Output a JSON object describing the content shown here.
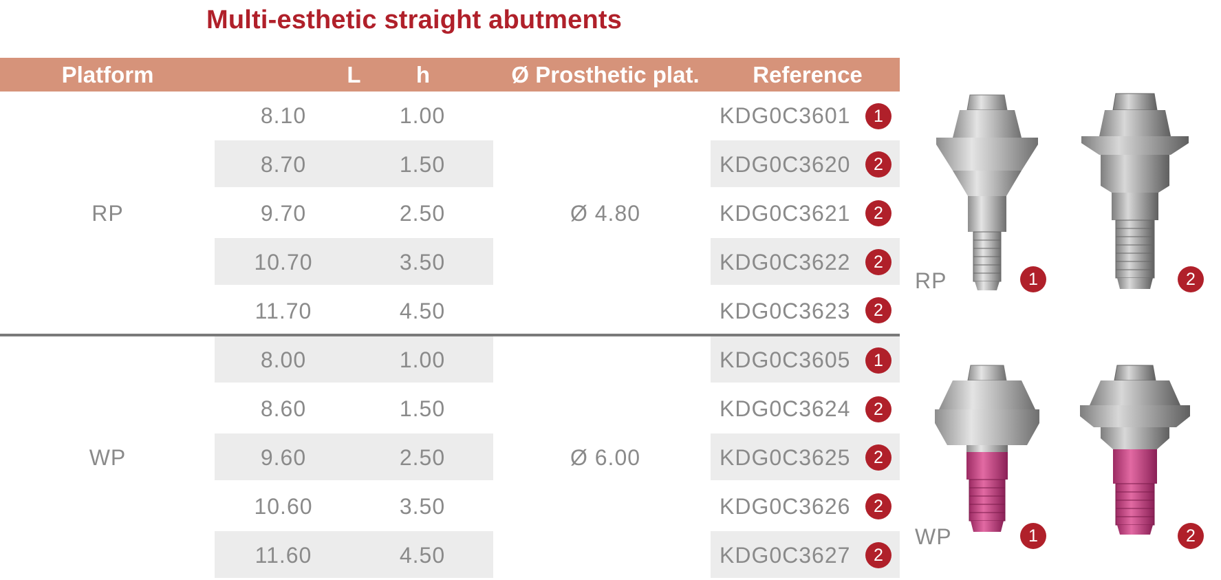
{
  "title": "Multi-esthetic straight abutments",
  "table": {
    "headers": {
      "platform": "Platform",
      "l": "L",
      "h": "h",
      "prosthetic": "Ø Prosthetic plat.",
      "reference": "Reference"
    },
    "groups": [
      {
        "platform": "RP",
        "prosthetic": "Ø 4.80",
        "rows": [
          {
            "l": "8.10",
            "h": "1.00",
            "reference": "KDG0C3601",
            "type": "1"
          },
          {
            "l": "8.70",
            "h": "1.50",
            "reference": "KDG0C3620",
            "type": "2"
          },
          {
            "l": "9.70",
            "h": "2.50",
            "reference": "KDG0C3621",
            "type": "2"
          },
          {
            "l": "10.70",
            "h": "3.50",
            "reference": "KDG0C3622",
            "type": "2"
          },
          {
            "l": "11.70",
            "h": "4.50",
            "reference": "KDG0C3623",
            "type": "2"
          }
        ]
      },
      {
        "platform": "WP",
        "prosthetic": "Ø 6.00",
        "rows": [
          {
            "l": "8.00",
            "h": "1.00",
            "reference": "KDG0C3605",
            "type": "1"
          },
          {
            "l": "8.60",
            "h": "1.50",
            "reference": "KDG0C3624",
            "type": "2"
          },
          {
            "l": "9.60",
            "h": "2.50",
            "reference": "KDG0C3625",
            "type": "2"
          },
          {
            "l": "10.60",
            "h": "3.50",
            "reference": "KDG0C3626",
            "type": "2"
          },
          {
            "l": "11.60",
            "h": "4.50",
            "reference": "KDG0C3627",
            "type": "2"
          }
        ]
      }
    ]
  },
  "images": {
    "rp_label": "RP",
    "wp_label": "WP",
    "badge_1": "1",
    "badge_2": "2"
  },
  "colors": {
    "title": "#b0202a",
    "header_bg": "#d6937a",
    "badge": "#b0202a",
    "band": "#ececec",
    "text": "#8a8a8a",
    "wp_screw": "#c8457f"
  }
}
